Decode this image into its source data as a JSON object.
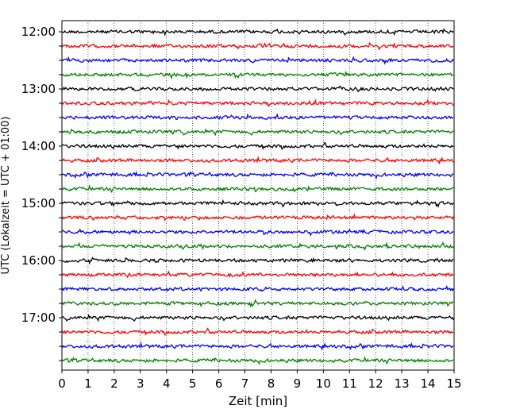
{
  "chart_data": {
    "type": "line",
    "title": "",
    "xlabel": "Zeit  [min]",
    "ylabel": "UTC (Lokalzeit = UTC + 01:00)",
    "xlim": [
      0,
      15
    ],
    "x_ticks": [
      "0",
      "1",
      "2",
      "3",
      "4",
      "5",
      "6",
      "7",
      "8",
      "9",
      "10",
      "11",
      "12",
      "13",
      "14",
      "15"
    ],
    "y_tick_labels": [
      "12:00",
      "13:00",
      "14:00",
      "15:00",
      "16:00",
      "17:00"
    ],
    "grid": "vertical dotted",
    "trace_colors": [
      "#000000",
      "#ff0000",
      "#0000ff",
      "#008000"
    ],
    "traces": [
      {
        "start": "12:00"
      },
      {
        "start": "12:15"
      },
      {
        "start": "12:30"
      },
      {
        "start": "12:45"
      },
      {
        "start": "13:00"
      },
      {
        "start": "13:15"
      },
      {
        "start": "13:30"
      },
      {
        "start": "13:45"
      },
      {
        "start": "14:00"
      },
      {
        "start": "14:15"
      },
      {
        "start": "14:30"
      },
      {
        "start": "14:45"
      },
      {
        "start": "15:00"
      },
      {
        "start": "15:15"
      },
      {
        "start": "15:30"
      },
      {
        "start": "15:45"
      },
      {
        "start": "16:00"
      },
      {
        "start": "16:15"
      },
      {
        "start": "16:30"
      },
      {
        "start": "16:45"
      },
      {
        "start": "17:00"
      },
      {
        "start": "17:15"
      },
      {
        "start": "17:30"
      },
      {
        "start": "17:45"
      }
    ]
  }
}
